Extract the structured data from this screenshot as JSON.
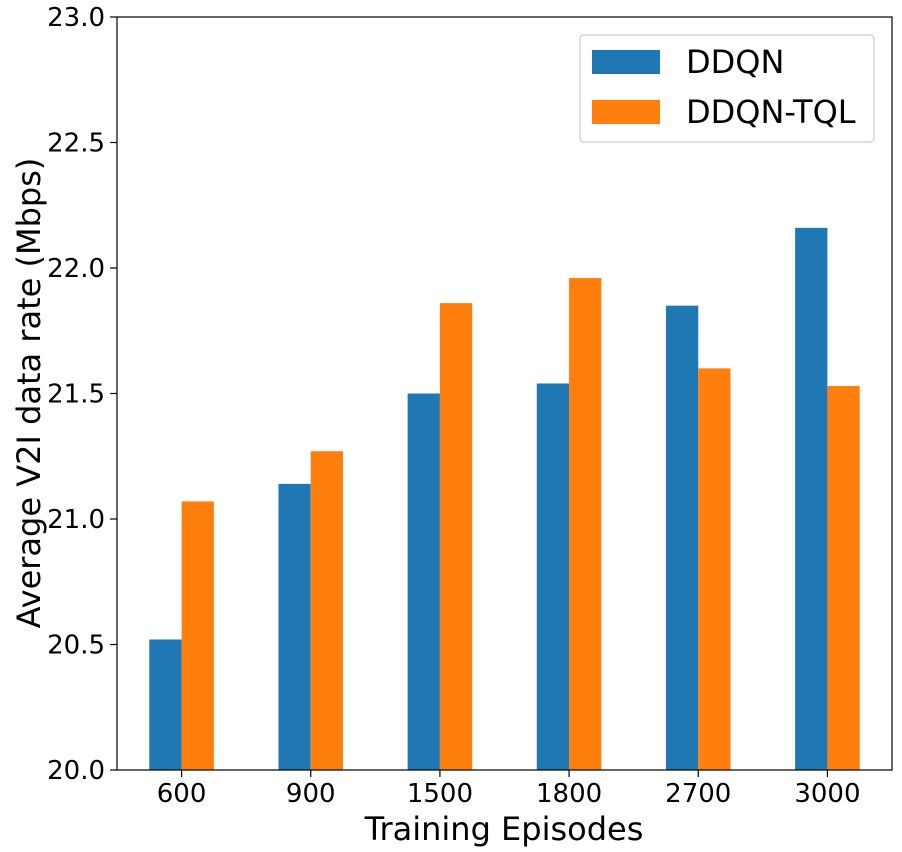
{
  "chart_data": {
    "type": "bar",
    "title": "",
    "xlabel": "Training Episodes",
    "ylabel": "Average V2I data rate (Mbps)",
    "categories": [
      "600",
      "900",
      "1500",
      "1800",
      "2700",
      "3000"
    ],
    "ylim": [
      20.0,
      23.0
    ],
    "yticks": [
      20.0,
      20.5,
      21.0,
      21.5,
      22.0,
      22.5,
      23.0
    ],
    "ytick_labels": [
      "20.0",
      "20.5",
      "21.0",
      "21.5",
      "22.0",
      "22.5",
      "23.0"
    ],
    "grid": false,
    "legend_position": "top-right",
    "series": [
      {
        "name": "DDQN",
        "color": "#1f77b4",
        "values": [
          20.52,
          21.14,
          21.5,
          21.54,
          21.85,
          22.16
        ]
      },
      {
        "name": "DDQN-TQL",
        "color": "#ff7f0e",
        "values": [
          21.07,
          21.27,
          21.86,
          21.96,
          21.6,
          21.53
        ]
      }
    ]
  }
}
